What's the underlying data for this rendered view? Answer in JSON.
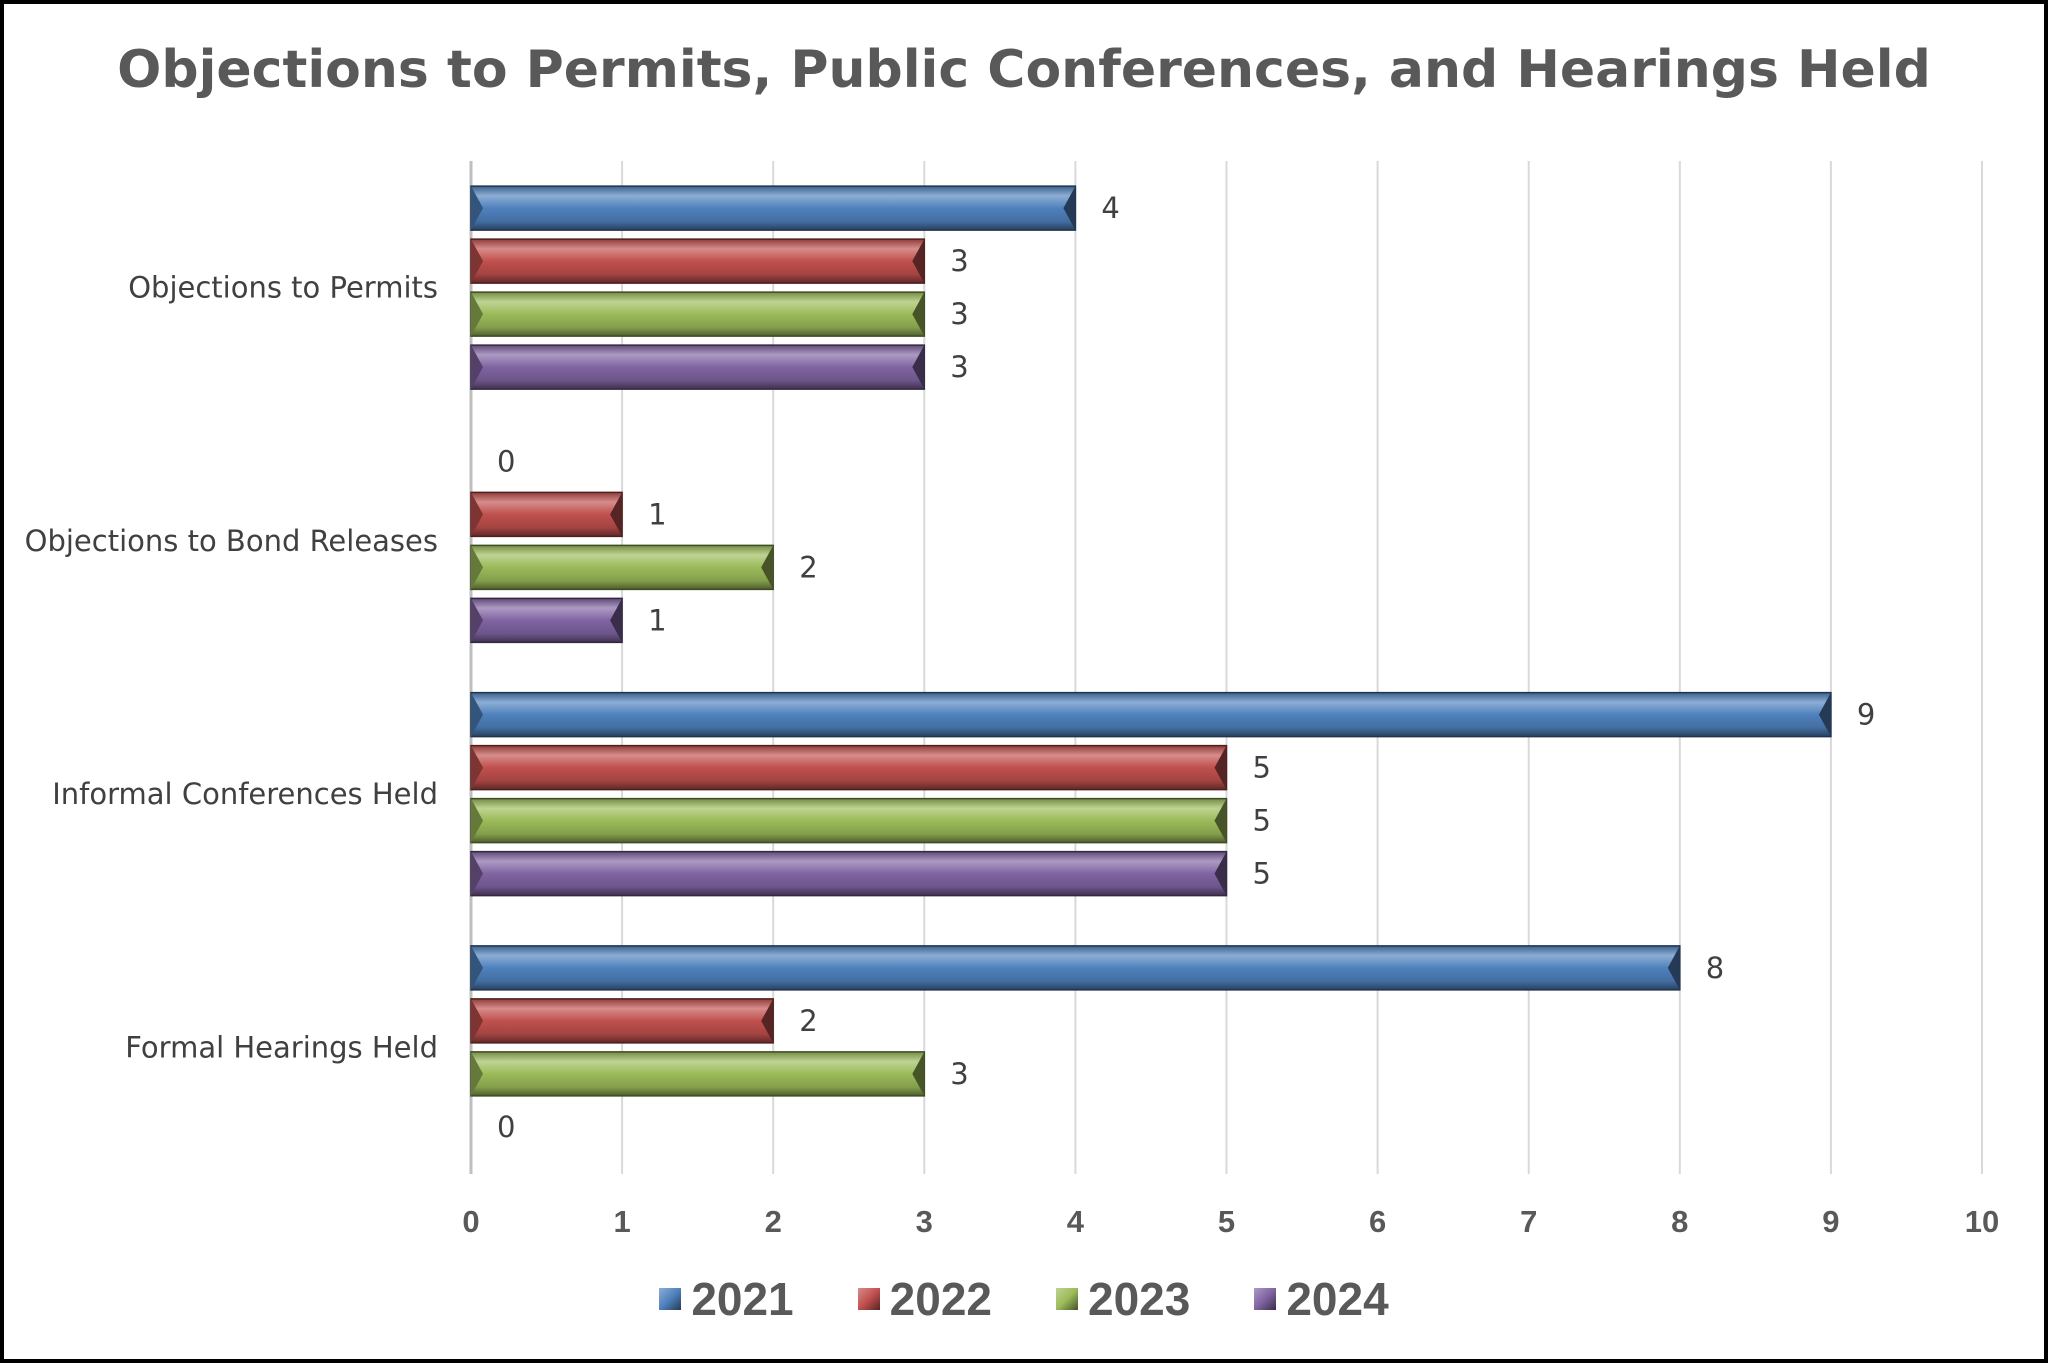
{
  "chart_data": {
    "type": "bar",
    "orientation": "horizontal",
    "title": "Objections to Permits, Public Conferences, and Hearings Held",
    "categories": [
      "Objections to Permits",
      "Objections to Bond Releases",
      "Informal Conferences Held",
      "Formal Hearings Held"
    ],
    "series": [
      {
        "name": "2021",
        "color": "#4f81bd",
        "values": [
          4,
          0,
          9,
          8
        ]
      },
      {
        "name": "2022",
        "color": "#c0504d",
        "values": [
          3,
          1,
          5,
          2
        ]
      },
      {
        "name": "2023",
        "color": "#9bbb59",
        "values": [
          3,
          2,
          5,
          3
        ]
      },
      {
        "name": "2024",
        "color": "#8064a2",
        "values": [
          3,
          1,
          5,
          0
        ]
      }
    ],
    "xlim": [
      0,
      10
    ],
    "xticks": [
      "0",
      "1",
      "2",
      "3",
      "4",
      "5",
      "6",
      "7",
      "8",
      "9",
      "10"
    ],
    "grid": true,
    "legend": "bottom",
    "data_labels": true
  }
}
